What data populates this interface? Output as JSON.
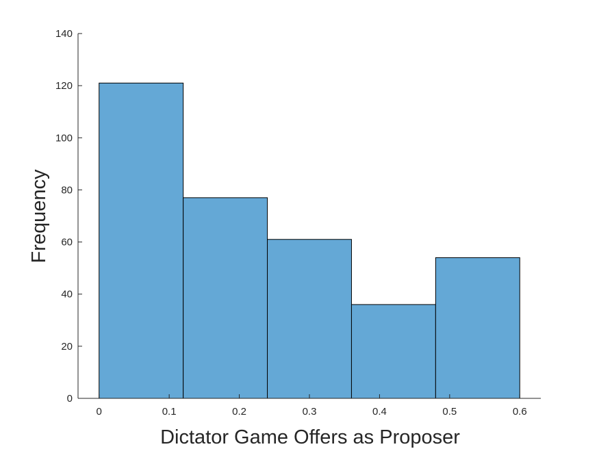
{
  "chart_data": {
    "type": "bar",
    "subtype": "histogram",
    "xlabel": "Dictator Game Offers as Proposer",
    "ylabel": "Frequency",
    "xlim": [
      -0.03,
      0.63
    ],
    "ylim": [
      0,
      140
    ],
    "x_ticks": [
      0,
      0.1,
      0.2,
      0.3,
      0.4,
      0.5,
      0.6
    ],
    "x_tick_labels": [
      "0",
      "0.1",
      "0.2",
      "0.3",
      "0.4",
      "0.5",
      "0.6"
    ],
    "y_ticks": [
      0,
      20,
      40,
      60,
      80,
      100,
      120,
      140
    ],
    "y_tick_labels": [
      "0",
      "20",
      "40",
      "60",
      "80",
      "100",
      "120",
      "140"
    ],
    "bins": [
      {
        "x_start": 0.0,
        "x_end": 0.12,
        "value": 121
      },
      {
        "x_start": 0.12,
        "x_end": 0.24,
        "value": 77
      },
      {
        "x_start": 0.24,
        "x_end": 0.36,
        "value": 61
      },
      {
        "x_start": 0.36,
        "x_end": 0.48,
        "value": 36
      },
      {
        "x_start": 0.48,
        "x_end": 0.6,
        "value": 54
      }
    ],
    "colors": {
      "bar_fill": "#64a8d6",
      "bar_edge": "#000000",
      "axis": "#262626"
    },
    "grid": false,
    "box": false
  }
}
